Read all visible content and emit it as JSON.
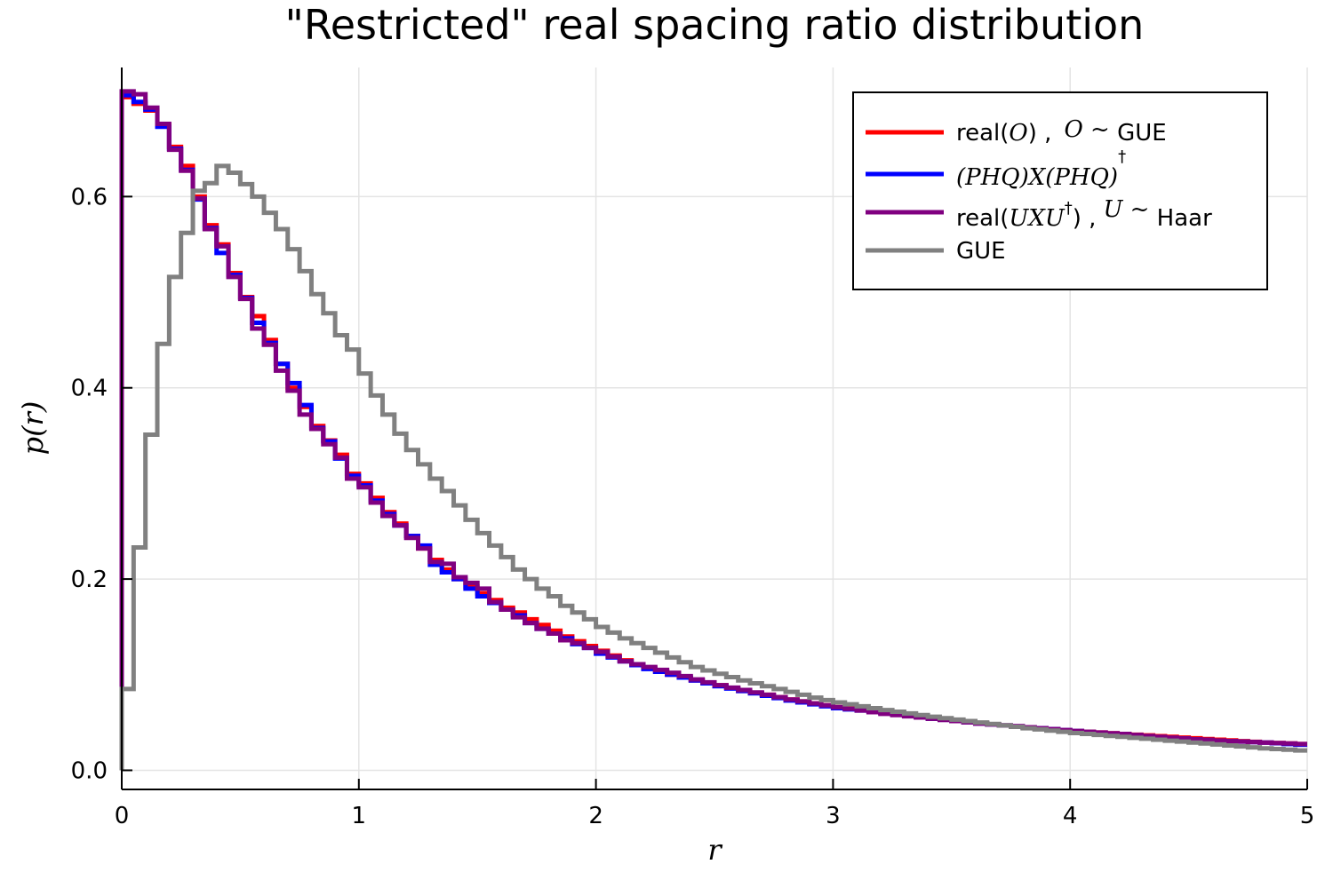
{
  "chart_data": {
    "type": "line",
    "drawstyle": "steps",
    "title": "\"Restricted\" real spacing ratio distribution",
    "xlabel": "r",
    "ylabel": "p(r)",
    "xlim": [
      0,
      5
    ],
    "ylim": [
      -0.02,
      0.735
    ],
    "xticks": [
      0,
      1,
      2,
      3,
      4,
      5
    ],
    "xtick_labels": [
      "0",
      "1",
      "2",
      "3",
      "4",
      "5"
    ],
    "yticks": [
      0.0,
      0.2,
      0.4,
      0.6
    ],
    "ytick_labels": [
      "0.0",
      "0.2",
      "0.4",
      "0.6"
    ],
    "grid": true,
    "legend_position": "top-right",
    "bin_width": 0.05,
    "colors": {
      "red": "#ff0000",
      "blue": "#0000ff",
      "purple": "#800080",
      "gray": "#808080"
    },
    "legend": [
      {
        "pre": "real(",
        "math": "O",
        "post": ") ,",
        "math2": "O ~",
        "tail": " GUE"
      },
      {
        "pre": "",
        "math": "(PHQ)X(PHQ)",
        "sup": "†",
        "post": "",
        "math2": "",
        "tail": ""
      },
      {
        "pre": "real(",
        "math": "UXU",
        "sup": "†",
        "post": ") ,",
        "math2": "U ~",
        "tail": " Haar"
      },
      {
        "pre": "GUE",
        "math": "",
        "post": "",
        "math2": "",
        "tail": ""
      }
    ],
    "series": [
      {
        "name": "real(O) , O ~ GUE",
        "color": "#ff0000",
        "x": [
          0,
          0.05,
          0.1,
          0.15,
          0.2,
          0.25,
          0.3,
          0.35,
          0.4,
          0.45,
          0.5,
          0.55,
          0.6,
          0.65,
          0.7,
          0.75,
          0.8,
          0.85,
          0.9,
          0.95,
          1.0,
          1.05,
          1.1,
          1.15,
          1.2,
          1.25,
          1.3,
          1.35,
          1.4,
          1.45,
          1.5,
          1.55,
          1.6,
          1.65,
          1.7,
          1.75,
          1.8,
          1.85,
          1.9,
          1.95,
          2.0,
          2.1,
          2.2,
          2.3,
          2.4,
          2.5,
          2.6,
          2.7,
          2.8,
          2.9,
          3.0,
          3.2,
          3.4,
          3.6,
          3.8,
          4.0,
          4.2,
          4.4,
          4.6,
          4.8,
          5.0
        ],
        "values": [
          0.704,
          0.697,
          0.69,
          0.675,
          0.652,
          0.632,
          0.6,
          0.57,
          0.55,
          0.52,
          0.495,
          0.475,
          0.45,
          0.425,
          0.4,
          0.38,
          0.36,
          0.345,
          0.33,
          0.31,
          0.3,
          0.285,
          0.27,
          0.258,
          0.245,
          0.232,
          0.22,
          0.21,
          0.2,
          0.192,
          0.185,
          0.178,
          0.17,
          0.165,
          0.158,
          0.152,
          0.146,
          0.14,
          0.135,
          0.13,
          0.125,
          0.115,
          0.107,
          0.1,
          0.094,
          0.089,
          0.083,
          0.079,
          0.074,
          0.07,
          0.066,
          0.06,
          0.054,
          0.049,
          0.045,
          0.041,
          0.038,
          0.035,
          0.032,
          0.029,
          0.027
        ]
      },
      {
        "name": "(PHQ)X(PHQ)†",
        "color": "#0000ff",
        "x": [
          0,
          0.05,
          0.1,
          0.15,
          0.2,
          0.25,
          0.3,
          0.35,
          0.4,
          0.45,
          0.5,
          0.55,
          0.6,
          0.65,
          0.7,
          0.75,
          0.8,
          0.85,
          0.9,
          0.95,
          1.0,
          1.05,
          1.1,
          1.15,
          1.2,
          1.25,
          1.3,
          1.35,
          1.4,
          1.45,
          1.5,
          1.55,
          1.6,
          1.65,
          1.7,
          1.75,
          1.8,
          1.85,
          1.9,
          1.95,
          2.0,
          2.1,
          2.2,
          2.3,
          2.4,
          2.5,
          2.6,
          2.7,
          2.8,
          2.9,
          3.0,
          3.2,
          3.4,
          3.6,
          3.8,
          4.0,
          4.2,
          4.4,
          4.6,
          4.8,
          5.0
        ],
        "values": [
          0.706,
          0.699,
          0.691,
          0.673,
          0.65,
          0.628,
          0.597,
          0.567,
          0.541,
          0.518,
          0.494,
          0.468,
          0.447,
          0.425,
          0.405,
          0.382,
          0.358,
          0.344,
          0.326,
          0.308,
          0.298,
          0.282,
          0.268,
          0.256,
          0.245,
          0.235,
          0.215,
          0.207,
          0.2,
          0.19,
          0.182,
          0.175,
          0.168,
          0.162,
          0.154,
          0.148,
          0.143,
          0.138,
          0.132,
          0.128,
          0.122,
          0.114,
          0.106,
          0.1,
          0.094,
          0.088,
          0.083,
          0.078,
          0.073,
          0.069,
          0.065,
          0.06,
          0.054,
          0.049,
          0.045,
          0.041,
          0.037,
          0.034,
          0.031,
          0.029,
          0.026
        ]
      },
      {
        "name": "real(UXU†) , U ~ Haar",
        "color": "#800080",
        "x": [
          0,
          0.05,
          0.1,
          0.15,
          0.2,
          0.25,
          0.3,
          0.35,
          0.4,
          0.45,
          0.5,
          0.55,
          0.6,
          0.65,
          0.7,
          0.75,
          0.8,
          0.85,
          0.9,
          0.95,
          1.0,
          1.05,
          1.1,
          1.15,
          1.2,
          1.25,
          1.3,
          1.35,
          1.4,
          1.45,
          1.5,
          1.55,
          1.6,
          1.65,
          1.7,
          1.75,
          1.8,
          1.85,
          1.9,
          1.95,
          2.0,
          2.1,
          2.2,
          2.3,
          2.4,
          2.5,
          2.6,
          2.7,
          2.8,
          2.9,
          3.0,
          3.2,
          3.4,
          3.6,
          3.8,
          4.0,
          4.2,
          4.4,
          4.6,
          4.8,
          5.0
        ],
        "values": [
          0.71,
          0.707,
          0.693,
          0.676,
          0.649,
          0.627,
          0.598,
          0.566,
          0.548,
          0.516,
          0.493,
          0.462,
          0.445,
          0.418,
          0.397,
          0.372,
          0.357,
          0.341,
          0.327,
          0.305,
          0.296,
          0.28,
          0.266,
          0.256,
          0.243,
          0.232,
          0.218,
          0.216,
          0.202,
          0.196,
          0.19,
          0.176,
          0.168,
          0.16,
          0.154,
          0.148,
          0.143,
          0.136,
          0.133,
          0.128,
          0.124,
          0.114,
          0.108,
          0.102,
          0.095,
          0.089,
          0.084,
          0.079,
          0.074,
          0.07,
          0.066,
          0.059,
          0.054,
          0.049,
          0.045,
          0.041,
          0.038,
          0.034,
          0.031,
          0.029,
          0.027
        ]
      },
      {
        "name": "GUE",
        "color": "#808080",
        "x": [
          0,
          0.05,
          0.1,
          0.15,
          0.2,
          0.25,
          0.3,
          0.35,
          0.4,
          0.45,
          0.5,
          0.55,
          0.6,
          0.65,
          0.7,
          0.75,
          0.8,
          0.85,
          0.9,
          0.95,
          1.0,
          1.05,
          1.1,
          1.15,
          1.2,
          1.25,
          1.3,
          1.35,
          1.4,
          1.45,
          1.5,
          1.55,
          1.6,
          1.65,
          1.7,
          1.75,
          1.8,
          1.85,
          1.9,
          1.95,
          2.0,
          2.1,
          2.2,
          2.3,
          2.4,
          2.5,
          2.6,
          2.7,
          2.8,
          2.9,
          3.0,
          3.2,
          3.4,
          3.6,
          3.8,
          4.0,
          4.2,
          4.4,
          4.6,
          4.8,
          5.0
        ],
        "values": [
          0.085,
          0.233,
          0.351,
          0.446,
          0.516,
          0.562,
          0.606,
          0.614,
          0.632,
          0.625,
          0.613,
          0.6,
          0.583,
          0.566,
          0.545,
          0.522,
          0.498,
          0.478,
          0.455,
          0.44,
          0.415,
          0.392,
          0.372,
          0.352,
          0.335,
          0.32,
          0.305,
          0.292,
          0.277,
          0.262,
          0.248,
          0.235,
          0.223,
          0.21,
          0.2,
          0.19,
          0.182,
          0.172,
          0.165,
          0.158,
          0.15,
          0.138,
          0.128,
          0.118,
          0.108,
          0.101,
          0.094,
          0.088,
          0.082,
          0.076,
          0.071,
          0.063,
          0.056,
          0.05,
          0.044,
          0.039,
          0.035,
          0.031,
          0.027,
          0.023,
          0.02
        ]
      }
    ]
  }
}
